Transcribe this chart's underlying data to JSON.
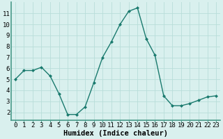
{
  "x": [
    0,
    1,
    2,
    3,
    4,
    5,
    6,
    7,
    8,
    9,
    10,
    11,
    12,
    13,
    14,
    15,
    16,
    17,
    18,
    19,
    20,
    21,
    22,
    23
  ],
  "y": [
    5.0,
    5.8,
    5.8,
    6.1,
    5.3,
    3.7,
    1.8,
    1.8,
    2.5,
    4.7,
    7.0,
    8.4,
    10.0,
    11.2,
    11.5,
    8.7,
    7.2,
    3.5,
    2.6,
    2.6,
    2.8,
    3.1,
    3.4,
    3.5
  ],
  "xlabel": "Humidex (Indice chaleur)",
  "line_color": "#1a7a6e",
  "marker": "D",
  "marker_size": 2,
  "bg_color": "#d9f0ee",
  "grid_color": "#b8ddd9",
  "xlim": [
    -0.5,
    23.5
  ],
  "ylim": [
    1.3,
    12.0
  ],
  "yticks": [
    2,
    3,
    4,
    5,
    6,
    7,
    8,
    9,
    10,
    11
  ],
  "xticks": [
    0,
    1,
    2,
    3,
    4,
    5,
    6,
    7,
    8,
    9,
    10,
    11,
    12,
    13,
    14,
    15,
    16,
    17,
    18,
    19,
    20,
    21,
    22,
    23
  ],
  "tick_fontsize": 6.5,
  "xlabel_fontsize": 7.5,
  "linewidth": 1.0,
  "spine_color": "#4a9a8a"
}
